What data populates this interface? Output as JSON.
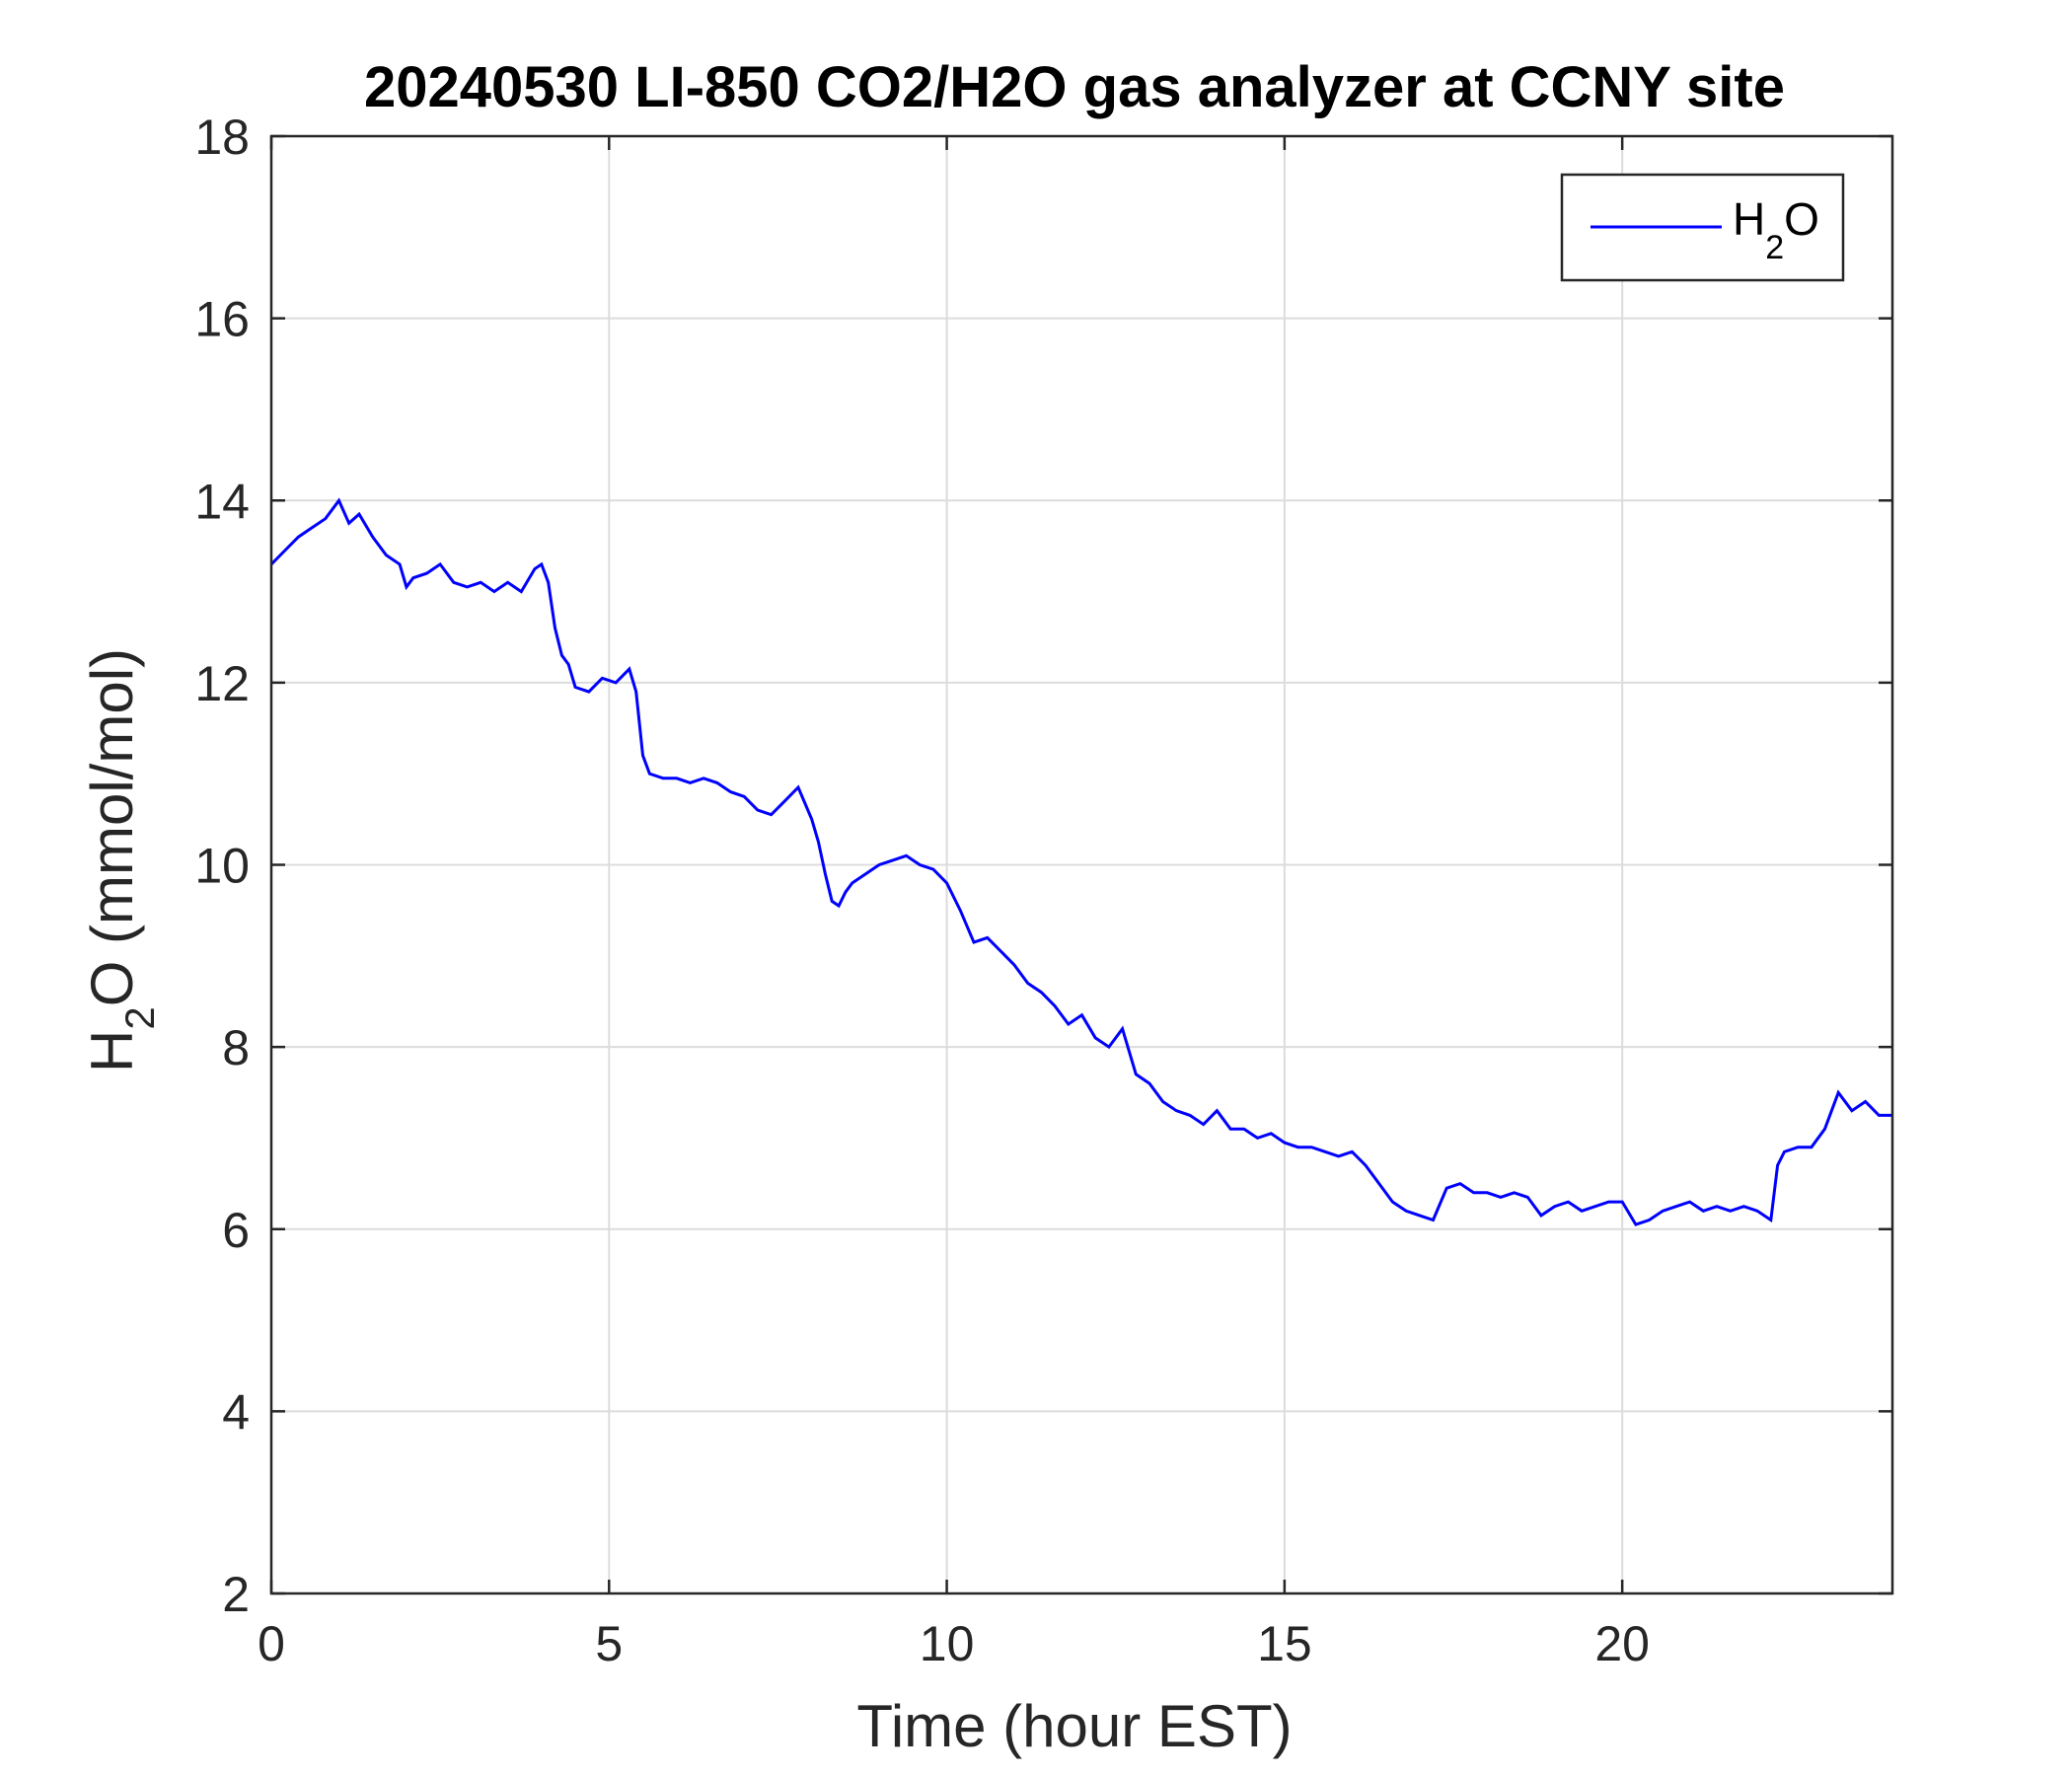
{
  "chart_data": {
    "type": "line",
    "title": "20240530 LI-850 CO2/H2O gas analyzer at CCNY site",
    "xlabel": "Time (hour EST)",
    "ylabel": {
      "base": "H",
      "sub": "2",
      "rest": "O (mmol/mol)"
    },
    "xlim": [
      0,
      24
    ],
    "ylim": [
      2,
      18
    ],
    "xticks": [
      0,
      5,
      10,
      15,
      20
    ],
    "yticks": [
      2,
      4,
      6,
      8,
      10,
      12,
      14,
      16,
      18
    ],
    "grid": true,
    "legend_position": "top-right",
    "series": [
      {
        "name": {
          "base": "H",
          "sub": "2",
          "rest": "O"
        },
        "color": "#0000FF",
        "x": [
          0,
          0.2,
          0.4,
          0.6,
          0.8,
          1.0,
          1.15,
          1.3,
          1.5,
          1.7,
          1.9,
          2.0,
          2.1,
          2.3,
          2.5,
          2.7,
          2.9,
          3.1,
          3.3,
          3.5,
          3.7,
          3.9,
          4.0,
          4.1,
          4.2,
          4.3,
          4.4,
          4.5,
          4.7,
          4.9,
          5.1,
          5.3,
          5.4,
          5.5,
          5.6,
          5.8,
          6.0,
          6.2,
          6.4,
          6.6,
          6.8,
          7.0,
          7.2,
          7.4,
          7.6,
          7.8,
          8.0,
          8.1,
          8.2,
          8.3,
          8.4,
          8.5,
          8.6,
          8.8,
          9.0,
          9.2,
          9.4,
          9.6,
          9.8,
          10.0,
          10.2,
          10.4,
          10.6,
          10.8,
          11.0,
          11.2,
          11.4,
          11.6,
          11.8,
          12.0,
          12.2,
          12.4,
          12.6,
          12.8,
          13.0,
          13.2,
          13.4,
          13.6,
          13.8,
          14.0,
          14.2,
          14.4,
          14.6,
          14.8,
          15.0,
          15.2,
          15.4,
          15.6,
          15.8,
          16.0,
          16.2,
          16.4,
          16.6,
          16.8,
          17.0,
          17.2,
          17.4,
          17.6,
          17.8,
          18.0,
          18.2,
          18.4,
          18.6,
          18.8,
          19.0,
          19.2,
          19.4,
          19.6,
          19.8,
          20.0,
          20.2,
          20.4,
          20.6,
          20.8,
          21.0,
          21.2,
          21.4,
          21.6,
          21.8,
          22.0,
          22.2,
          22.3,
          22.4,
          22.6,
          22.8,
          23.0,
          23.2,
          23.4,
          23.6,
          23.8,
          24.0
        ],
        "y": [
          13.3,
          13.45,
          13.6,
          13.7,
          13.8,
          14.0,
          13.75,
          13.85,
          13.6,
          13.4,
          13.3,
          13.05,
          13.15,
          13.2,
          13.3,
          13.1,
          13.05,
          13.1,
          13.0,
          13.1,
          13.0,
          13.25,
          13.3,
          13.1,
          12.6,
          12.3,
          12.2,
          11.95,
          11.9,
          12.05,
          12.0,
          12.15,
          11.9,
          11.2,
          11.0,
          10.95,
          10.95,
          10.9,
          10.95,
          10.9,
          10.8,
          10.75,
          10.6,
          10.55,
          10.7,
          10.85,
          10.5,
          10.25,
          9.9,
          9.6,
          9.55,
          9.7,
          9.8,
          9.9,
          10.0,
          10.05,
          10.1,
          10.0,
          9.95,
          9.8,
          9.5,
          9.15,
          9.2,
          9.05,
          8.9,
          8.7,
          8.6,
          8.45,
          8.25,
          8.35,
          8.1,
          8.0,
          8.2,
          7.7,
          7.6,
          7.4,
          7.3,
          7.25,
          7.15,
          7.3,
          7.1,
          7.1,
          7.0,
          7.05,
          6.95,
          6.9,
          6.9,
          6.85,
          6.8,
          6.85,
          6.7,
          6.5,
          6.3,
          6.2,
          6.15,
          6.1,
          6.45,
          6.5,
          6.4,
          6.4,
          6.35,
          6.4,
          6.35,
          6.15,
          6.25,
          6.3,
          6.2,
          6.25,
          6.3,
          6.3,
          6.05,
          6.1,
          6.2,
          6.25,
          6.3,
          6.2,
          6.25,
          6.2,
          6.25,
          6.2,
          6.1,
          6.7,
          6.85,
          6.9,
          6.9,
          7.1,
          7.5,
          7.3,
          7.4,
          7.25,
          7.25
        ]
      }
    ]
  }
}
